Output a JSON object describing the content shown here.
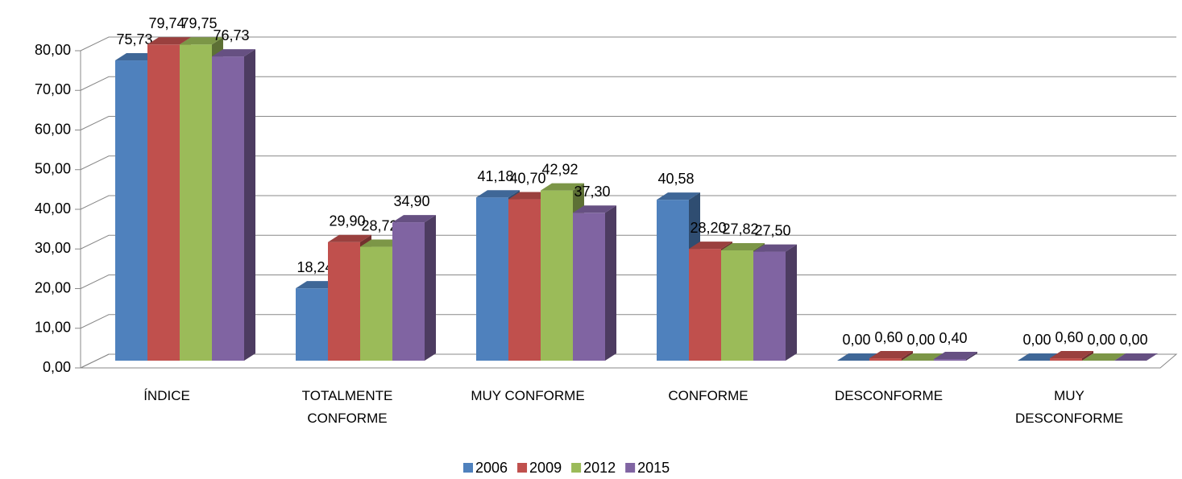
{
  "chart_data": {
    "type": "bar3d",
    "categories": [
      "ÍNDICE",
      "TOTALMENTE CONFORME",
      "MUY CONFORME",
      "CONFORME",
      "DESCONFORME",
      "MUY DESCONFORME"
    ],
    "series": [
      {
        "name": "2006",
        "color": "#4f81bd",
        "values": [
          75.73,
          18.24,
          41.18,
          40.58,
          0.0,
          0.0
        ],
        "value_labels": [
          "75,73",
          "18,24",
          "41,18",
          "40,58",
          "0,00",
          "0,00"
        ]
      },
      {
        "name": "2009",
        "color": "#c0504d",
        "values": [
          79.74,
          29.9,
          40.7,
          28.2,
          0.6,
          0.6
        ],
        "value_labels": [
          "79,74",
          "29,90",
          "40,70",
          "28,20",
          "0,60",
          "0,60"
        ]
      },
      {
        "name": "2012",
        "color": "#9bbb59",
        "values": [
          79.75,
          28.72,
          42.92,
          27.82,
          0.0,
          0.0
        ],
        "value_labels": [
          "79,75",
          "28,72",
          "42,92",
          "27,82",
          "0,00",
          "0,00"
        ]
      },
      {
        "name": "2015",
        "color": "#8064a2",
        "values": [
          76.73,
          34.9,
          37.3,
          27.5,
          0.4,
          0.0
        ],
        "value_labels": [
          "76,73",
          "34,90",
          "37,30",
          "27,50",
          "0,40",
          "0,00"
        ]
      }
    ],
    "ylim": [
      0,
      80
    ],
    "yticks": [
      {
        "value": 0,
        "label": "0,00"
      },
      {
        "value": 10,
        "label": "10,00"
      },
      {
        "value": 20,
        "label": "20,00"
      },
      {
        "value": 30,
        "label": "30,00"
      },
      {
        "value": 40,
        "label": "40,00"
      },
      {
        "value": 50,
        "label": "50,00"
      },
      {
        "value": 60,
        "label": "60,00"
      },
      {
        "value": 70,
        "label": "70,00"
      },
      {
        "value": 80,
        "label": "80,00"
      }
    ],
    "grid": true,
    "legend": "bottom"
  }
}
